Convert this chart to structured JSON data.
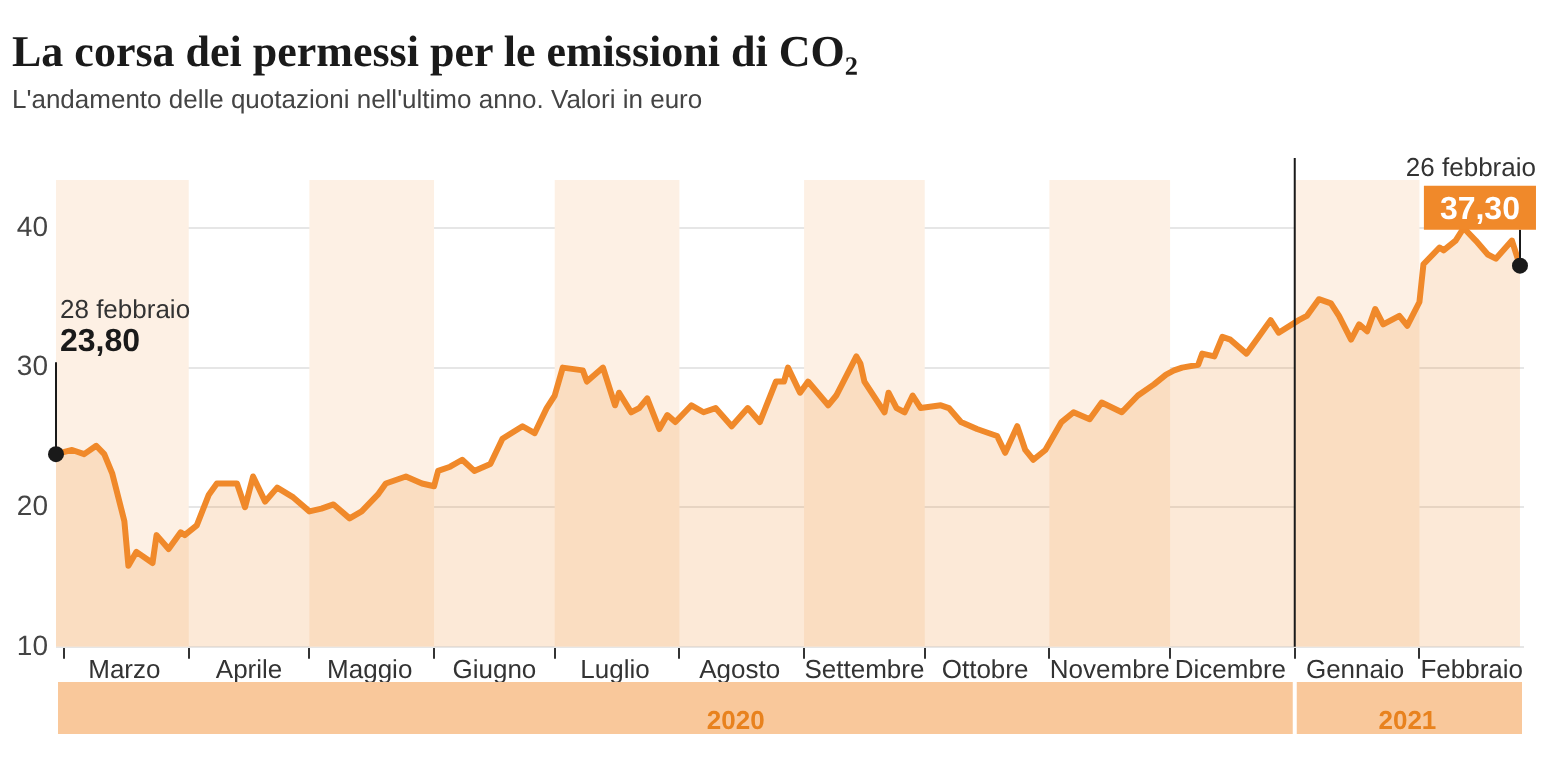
{
  "chart_data": {
    "type": "area",
    "title": "La corsa dei permessi per le emissioni di CO₂",
    "subtitle": "L'andamento delle quotazioni nell'ultimo anno. Valori in euro",
    "annotations": [
      "28 febbraio",
      "26 febbraio"
    ],
    "x2lim": [
      "2020-02-28",
      "2021-02-27"
    ],
    "x2ticks": [
      {
        "value": "2020-08-15",
        "label": "2020"
      },
      {
        "value": "2021-01-29",
        "label": "2021"
      }
    ],
    "series": [
      {
        "color": "#f0892a",
        "x": [
          "2020-02-28",
          "2020-03-03",
          "2020-03-06",
          "2020-03-09",
          "2020-03-11",
          "2020-03-13",
          "2020-03-16",
          "2020-03-17",
          "2020-03-19",
          "2020-03-23",
          "2020-03-24",
          "2020-03-27",
          "2020-03-30",
          "2020-03-31",
          "2020-04-03",
          "2020-04-06",
          "2020-04-08",
          "2020-04-13",
          "2020-04-15",
          "2020-04-17",
          "2020-04-20",
          "2020-04-23",
          "2020-04-27",
          "2020-05-01",
          "2020-05-04",
          "2020-05-07",
          "2020-05-11",
          "2020-05-14",
          "2020-05-18",
          "2020-05-20",
          "2020-05-25",
          "2020-05-29",
          "2020-06-01",
          "2020-06-02",
          "2020-06-05",
          "2020-06-08",
          "2020-06-11",
          "2020-06-15",
          "2020-06-18",
          "2020-06-23",
          "2020-06-26",
          "2020-06-29",
          "2020-07-01",
          "2020-07-03",
          "2020-07-08",
          "2020-07-09",
          "2020-07-13",
          "2020-07-16",
          "2020-07-17",
          "2020-07-20",
          "2020-07-22",
          "2020-07-24",
          "2020-07-27",
          "2020-07-29",
          "2020-07-31",
          "2020-08-04",
          "2020-08-07",
          "2020-08-10",
          "2020-08-14",
          "2020-08-18",
          "2020-08-21",
          "2020-08-25",
          "2020-08-27",
          "2020-08-28",
          "2020-08-31",
          "2020-09-02",
          "2020-09-07",
          "2020-09-09",
          "2020-09-14",
          "2020-09-15",
          "2020-09-16",
          "2020-09-21",
          "2020-09-22",
          "2020-09-24",
          "2020-09-26",
          "2020-09-28",
          "2020-09-30",
          "2020-10-05",
          "2020-10-07",
          "2020-10-10",
          "2020-10-14",
          "2020-10-17",
          "2020-10-19",
          "2020-10-21",
          "2020-10-24",
          "2020-10-26",
          "2020-10-28",
          "2020-10-31",
          "2020-11-04",
          "2020-11-07",
          "2020-11-11",
          "2020-11-14",
          "2020-11-19",
          "2020-11-23",
          "2020-11-27",
          "2020-11-30",
          "2020-12-02",
          "2020-12-04",
          "2020-12-08",
          "2020-12-09",
          "2020-12-12",
          "2020-12-14",
          "2020-12-16",
          "2020-12-20",
          "2020-12-23",
          "2020-12-26",
          "2020-12-28",
          "2021-01-02",
          "2021-01-04",
          "2021-01-07",
          "2021-01-10",
          "2021-01-12",
          "2021-01-15",
          "2021-01-17",
          "2021-01-19",
          "2021-01-21",
          "2021-01-23",
          "2021-01-27",
          "2021-01-29",
          "2021-02-01",
          "2021-02-02",
          "2021-02-06",
          "2021-02-07",
          "2021-02-10",
          "2021-02-12",
          "2021-02-15",
          "2021-02-18",
          "2021-02-20",
          "2021-02-24",
          "2021-02-26"
        ],
        "values": [
          23.8,
          24.1,
          23.8,
          24.4,
          23.8,
          22.4,
          19.0,
          15.8,
          16.8,
          16.0,
          18.0,
          17.0,
          18.2,
          18.0,
          18.7,
          20.9,
          21.7,
          21.7,
          20.0,
          22.2,
          20.4,
          21.4,
          20.7,
          19.7,
          19.9,
          20.2,
          19.2,
          19.7,
          20.9,
          21.7,
          22.2,
          21.7,
          21.5,
          22.6,
          22.9,
          23.4,
          22.6,
          23.1,
          24.9,
          25.8,
          25.3,
          27.1,
          28.0,
          30.0,
          29.8,
          29.0,
          30.0,
          27.3,
          28.2,
          26.8,
          27.1,
          27.8,
          25.6,
          26.6,
          26.1,
          27.3,
          26.8,
          27.1,
          25.8,
          27.1,
          26.1,
          29.0,
          29.0,
          30.0,
          28.2,
          29.0,
          27.3,
          28.0,
          30.8,
          30.3,
          29.0,
          26.8,
          28.2,
          27.1,
          26.8,
          28.0,
          27.1,
          27.3,
          27.1,
          26.1,
          25.6,
          25.3,
          25.1,
          23.9,
          25.8,
          24.1,
          23.4,
          24.1,
          26.1,
          26.8,
          26.3,
          27.5,
          26.8,
          28.0,
          28.8,
          29.5,
          29.8,
          30.0,
          30.2,
          31.0,
          30.8,
          32.2,
          32.0,
          31.0,
          32.2,
          33.4,
          32.5,
          33.4,
          33.7,
          34.9,
          34.6,
          33.7,
          32.0,
          33.1,
          32.6,
          34.2,
          33.1,
          33.7,
          33.0,
          34.7,
          37.4,
          38.6,
          38.4,
          39.1,
          40.0,
          39.1,
          38.1,
          37.8,
          39.1,
          37.3
        ],
        "value_labels": [
          "23,80",
          null,
          null,
          null,
          null,
          null,
          null,
          null,
          null,
          null,
          null,
          null,
          null,
          null,
          null,
          null,
          null,
          null,
          null,
          null,
          null,
          null,
          null,
          null,
          null,
          null,
          null,
          null,
          null,
          null,
          null,
          null,
          null,
          null,
          null,
          null,
          null,
          null,
          null,
          null,
          null,
          null,
          null,
          null,
          null,
          null,
          null,
          null,
          null,
          null,
          null,
          null,
          null,
          null,
          null,
          null,
          null,
          null,
          null,
          null,
          null,
          null,
          null,
          null,
          null,
          null,
          null,
          null,
          null,
          null,
          null,
          null,
          null,
          null,
          null,
          null,
          null,
          null,
          null,
          null,
          null,
          null,
          null,
          null,
          null,
          null,
          null,
          null,
          null,
          null,
          null,
          null,
          null,
          null,
          null,
          null,
          null,
          null,
          null,
          null,
          null,
          null,
          null,
          null,
          null,
          null,
          null,
          null,
          null,
          null,
          null,
          null,
          null,
          null,
          null,
          null,
          null,
          null,
          null,
          null,
          null,
          null,
          null,
          null,
          null,
          null,
          null,
          null,
          null,
          "37,30"
        ]
      }
    ],
    "xlim": [
      "2020-02-28",
      "2021-02-27"
    ],
    "xticks": [
      {
        "value": "2020-03-01",
        "label": null
      },
      {
        "value": "2020-03-16",
        "label": "Marzo"
      },
      {
        "value": "2020-04-01",
        "label": null
      },
      {
        "value": "2020-04-16",
        "label": "Aprile"
      },
      {
        "value": "2020-05-01",
        "label": null
      },
      {
        "value": "2020-05-16",
        "label": "Maggio"
      },
      {
        "value": "2020-06-01",
        "label": null
      },
      {
        "value": "2020-06-16",
        "label": "Giugno"
      },
      {
        "value": "2020-07-01",
        "label": null
      },
      {
        "value": "2020-07-16",
        "label": "Luglio"
      },
      {
        "value": "2020-08-01",
        "label": null
      },
      {
        "value": "2020-08-16",
        "label": "Agosto"
      },
      {
        "value": "2020-09-01",
        "label": null
      },
      {
        "value": "2020-09-16",
        "label": "Settembre"
      },
      {
        "value": "2020-10-01",
        "label": null
      },
      {
        "value": "2020-10-16",
        "label": "Ottobre"
      },
      {
        "value": "2020-11-01",
        "label": null
      },
      {
        "value": "2020-11-16",
        "label": "Novembre"
      },
      {
        "value": "2020-12-01",
        "label": null
      },
      {
        "value": "2020-12-16",
        "label": "Dicembre"
      },
      {
        "value": "2021-01-01",
        "label": null
      },
      {
        "value": "2021-01-16",
        "label": "Gennaio"
      },
      {
        "value": "2021-02-01",
        "label": null
      },
      {
        "value": "2021-02-14",
        "label": "Febbraio"
      }
    ],
    "ylim": [
      10,
      40
    ],
    "yticks": [
      10,
      20,
      30,
      40
    ],
    "grid": "y",
    "legend": false,
    "marker": "none",
    "ref_lines": [
      {
        "axis": "x",
        "value": "2021-01-01",
        "color": "#1a1a1a"
      }
    ],
    "bands": [
      {
        "axis": "x",
        "from": "2020-02-28",
        "to": "2020-04-01",
        "color": "#fdf0e4"
      },
      {
        "axis": "x",
        "from": "2020-05-01",
        "to": "2020-06-01",
        "color": "#fdf0e4"
      },
      {
        "axis": "x",
        "from": "2020-07-01",
        "to": "2020-08-01",
        "color": "#fdf0e4"
      },
      {
        "axis": "x",
        "from": "2020-09-01",
        "to": "2020-10-01",
        "color": "#fdf0e4"
      },
      {
        "axis": "x",
        "from": "2020-11-01",
        "to": "2020-12-01",
        "color": "#fdf0e4"
      },
      {
        "axis": "x",
        "from": "2021-01-01",
        "to": "2021-02-01",
        "color": "#fdf0e4"
      }
    ]
  }
}
